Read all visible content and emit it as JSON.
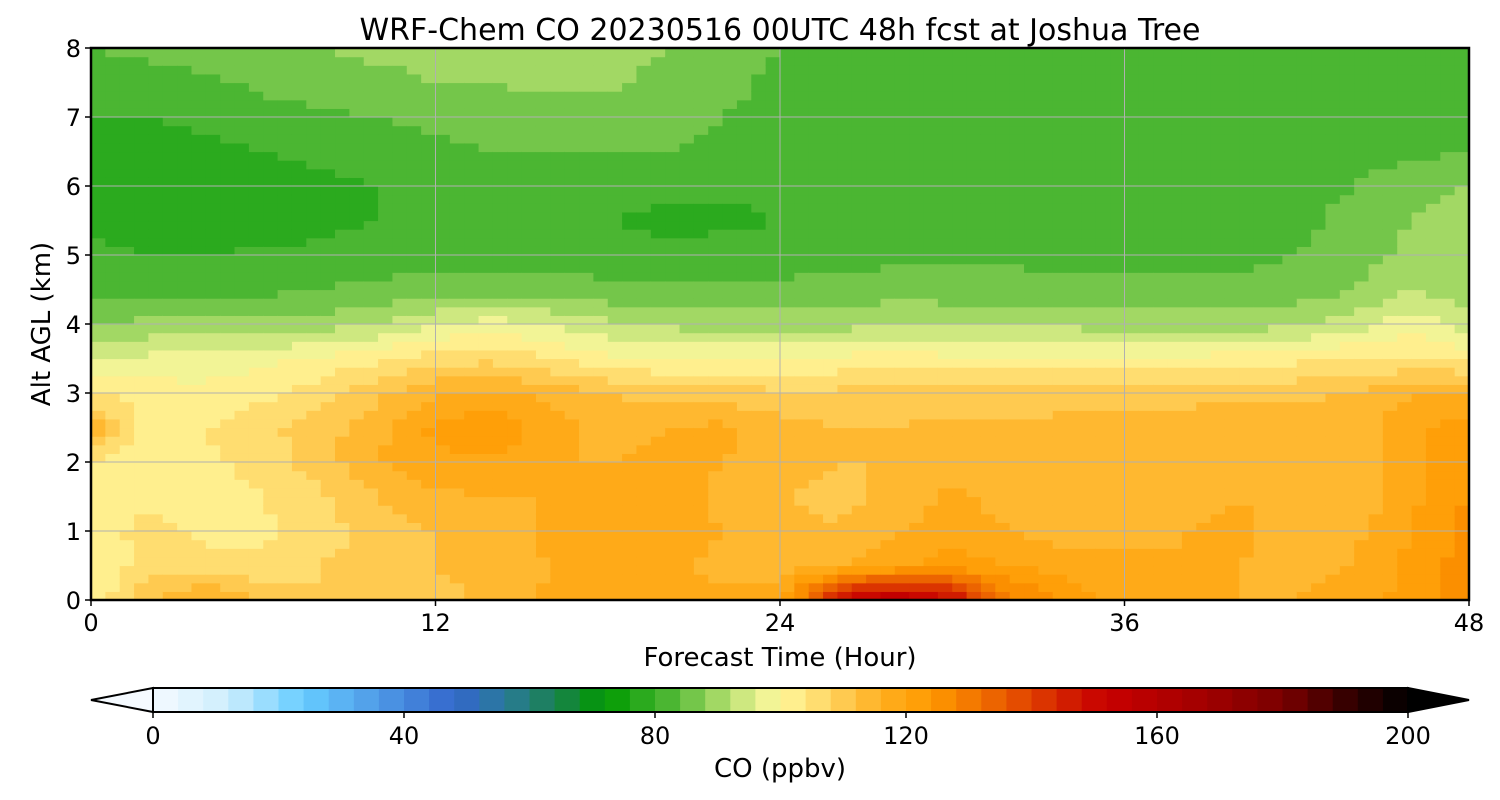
{
  "chart_data": {
    "type": "heatmap",
    "title": "WRF-Chem CO  20230516 00UTC 48h fcst at Joshua Tree",
    "xlabel": "Forecast Time (Hour)",
    "ylabel": "Alt AGL (km)",
    "xlim": [
      0,
      48
    ],
    "ylim": [
      0,
      8
    ],
    "xticks": [
      "0",
      "12",
      "24",
      "36",
      "48"
    ],
    "xtick_values": [
      0,
      12,
      24,
      36,
      48
    ],
    "yticks": [
      "0",
      "1",
      "2",
      "3",
      "4",
      "5",
      "6",
      "7",
      "8"
    ],
    "ytick_values": [
      0,
      1,
      2,
      3,
      4,
      5,
      6,
      7,
      8
    ],
    "grid": true,
    "x": [
      0,
      2,
      4,
      6,
      8,
      10,
      12,
      14,
      16,
      18,
      20,
      22,
      24,
      26,
      28,
      30,
      32,
      34,
      36,
      38,
      40,
      42,
      44,
      46,
      48
    ],
    "y": [
      0,
      0.5,
      1,
      1.5,
      2,
      2.5,
      3,
      3.5,
      4,
      4.5,
      5,
      5.5,
      6,
      6.5,
      7,
      7.5,
      8
    ],
    "z": [
      [
        100,
        112,
        118,
        112,
        108,
        110,
        111,
        113,
        117,
        118,
        118,
        117,
        117,
        150,
        160,
        150,
        130,
        122,
        119,
        117,
        116,
        116,
        118,
        122,
        127
      ],
      [
        100,
        106,
        105,
        105,
        108,
        110,
        112,
        113,
        116,
        117,
        117,
        115,
        115,
        116,
        119,
        122,
        120,
        118,
        117,
        116,
        116,
        115,
        116,
        121,
        126
      ],
      [
        101,
        106,
        103,
        103,
        106,
        110,
        112,
        114,
        117,
        118,
        118,
        116,
        114,
        112,
        116,
        118,
        116,
        114,
        115,
        116,
        117,
        114,
        115,
        120,
        126
      ],
      [
        100,
        102,
        102,
        104,
        107,
        112,
        115,
        116,
        116,
        117,
        118,
        115,
        112,
        111,
        113,
        117,
        114,
        112,
        112,
        114,
        116,
        115,
        113,
        119,
        124
      ],
      [
        104,
        100,
        103,
        106,
        110,
        116,
        119,
        119,
        116,
        116,
        117,
        116,
        113,
        112,
        112,
        114,
        114,
        113,
        113,
        114,
        114,
        115,
        113,
        119,
        124
      ],
      [
        115,
        102,
        104,
        107,
        110,
        115,
        121,
        124,
        118,
        114,
        116,
        117,
        114,
        112,
        112,
        113,
        113,
        114,
        115,
        115,
        116,
        116,
        114,
        119,
        122
      ],
      [
        104,
        102,
        101,
        103,
        106,
        111,
        116,
        117,
        115,
        112,
        110,
        110,
        109,
        109,
        110,
        110,
        109,
        109,
        109,
        110,
        110,
        111,
        112,
        116,
        116
      ],
      [
        95,
        97,
        98,
        99,
        101,
        103,
        106,
        107,
        104,
        101,
        100,
        100,
        100,
        101,
        102,
        101,
        101,
        101,
        101,
        101,
        102,
        103,
        104,
        104,
        103
      ],
      [
        88,
        89,
        89,
        89,
        90,
        92,
        96,
        98,
        96,
        93,
        91,
        90,
        90,
        90,
        92,
        91,
        91,
        91,
        90,
        90,
        90,
        91,
        94,
        99,
        93
      ],
      [
        83,
        83,
        83,
        83,
        84,
        85,
        86,
        86,
        86,
        85,
        85,
        85,
        85,
        86,
        86,
        86,
        86,
        85,
        85,
        85,
        85,
        86,
        88,
        92,
        89
      ],
      [
        81,
        80,
        80,
        81,
        81,
        82,
        82,
        82,
        82,
        82,
        81,
        82,
        82,
        82,
        83,
        83,
        83,
        83,
        83,
        83,
        83,
        84,
        86,
        89,
        91
      ],
      [
        79,
        78,
        77,
        77,
        79,
        80,
        80,
        80,
        80,
        80,
        79,
        79,
        80,
        81,
        83,
        83,
        83,
        83,
        83,
        83,
        83,
        83,
        85,
        88,
        91
      ],
      [
        77,
        77,
        77,
        77,
        79,
        80,
        81,
        81,
        81,
        82,
        81,
        81,
        81,
        81,
        83,
        83,
        83,
        83,
        83,
        83,
        83,
        83,
        84,
        86,
        88
      ],
      [
        78,
        78,
        79,
        80,
        81,
        82,
        83,
        84,
        84,
        84,
        84,
        83,
        82,
        83,
        83,
        83,
        83,
        83,
        83,
        83,
        83,
        83,
        83,
        83,
        84
      ],
      [
        80,
        80,
        81,
        82,
        83,
        84,
        85,
        86,
        86,
        86,
        85,
        84,
        83,
        83,
        83,
        83,
        83,
        83,
        83,
        83,
        83,
        83,
        83,
        83,
        82
      ],
      [
        81,
        82,
        83,
        85,
        86,
        87,
        88,
        88,
        89,
        89,
        87,
        85,
        83,
        83,
        83,
        83,
        83,
        83,
        83,
        83,
        83,
        83,
        83,
        82,
        81
      ],
      [
        84,
        85,
        86,
        87,
        88,
        89,
        89,
        89,
        89,
        89,
        88,
        86,
        84,
        82,
        82,
        83,
        83,
        83,
        83,
        83,
        83,
        82,
        82,
        81,
        81
      ]
    ],
    "colorbar": {
      "label": "CO  (ppbv)",
      "min": 0,
      "max": 200,
      "step": 4,
      "ticks": [
        "0",
        "40",
        "80",
        "120",
        "160",
        "200"
      ],
      "tick_values": [
        0,
        40,
        80,
        120,
        160,
        200
      ],
      "extend": "both",
      "stops": [
        [
          0,
          "#f5faff"
        ],
        [
          12,
          "#cdeefc"
        ],
        [
          24,
          "#66ccff"
        ],
        [
          36,
          "#4f9ae6"
        ],
        [
          48,
          "#3366cc"
        ],
        [
          56,
          "#2a7a9a"
        ],
        [
          64,
          "#1a8050"
        ],
        [
          72,
          "#009900"
        ],
        [
          76,
          "#1ca514"
        ],
        [
          80,
          "#3aaf28"
        ],
        [
          84,
          "#5cbd3c"
        ],
        [
          88,
          "#8ccf58"
        ],
        [
          92,
          "#b8e070"
        ],
        [
          96,
          "#e4f090"
        ],
        [
          100,
          "#fff89c"
        ],
        [
          104,
          "#ffe680"
        ],
        [
          108,
          "#ffd460"
        ],
        [
          112,
          "#ffc040"
        ],
        [
          116,
          "#ffb020"
        ],
        [
          124,
          "#ff9900"
        ],
        [
          132,
          "#f07000"
        ],
        [
          140,
          "#e04000"
        ],
        [
          148,
          "#cc1000"
        ],
        [
          152,
          "#c80000"
        ],
        [
          168,
          "#a00000"
        ],
        [
          180,
          "#7a0000"
        ],
        [
          192,
          "#2a0000"
        ],
        [
          200,
          "#000000"
        ]
      ]
    }
  }
}
